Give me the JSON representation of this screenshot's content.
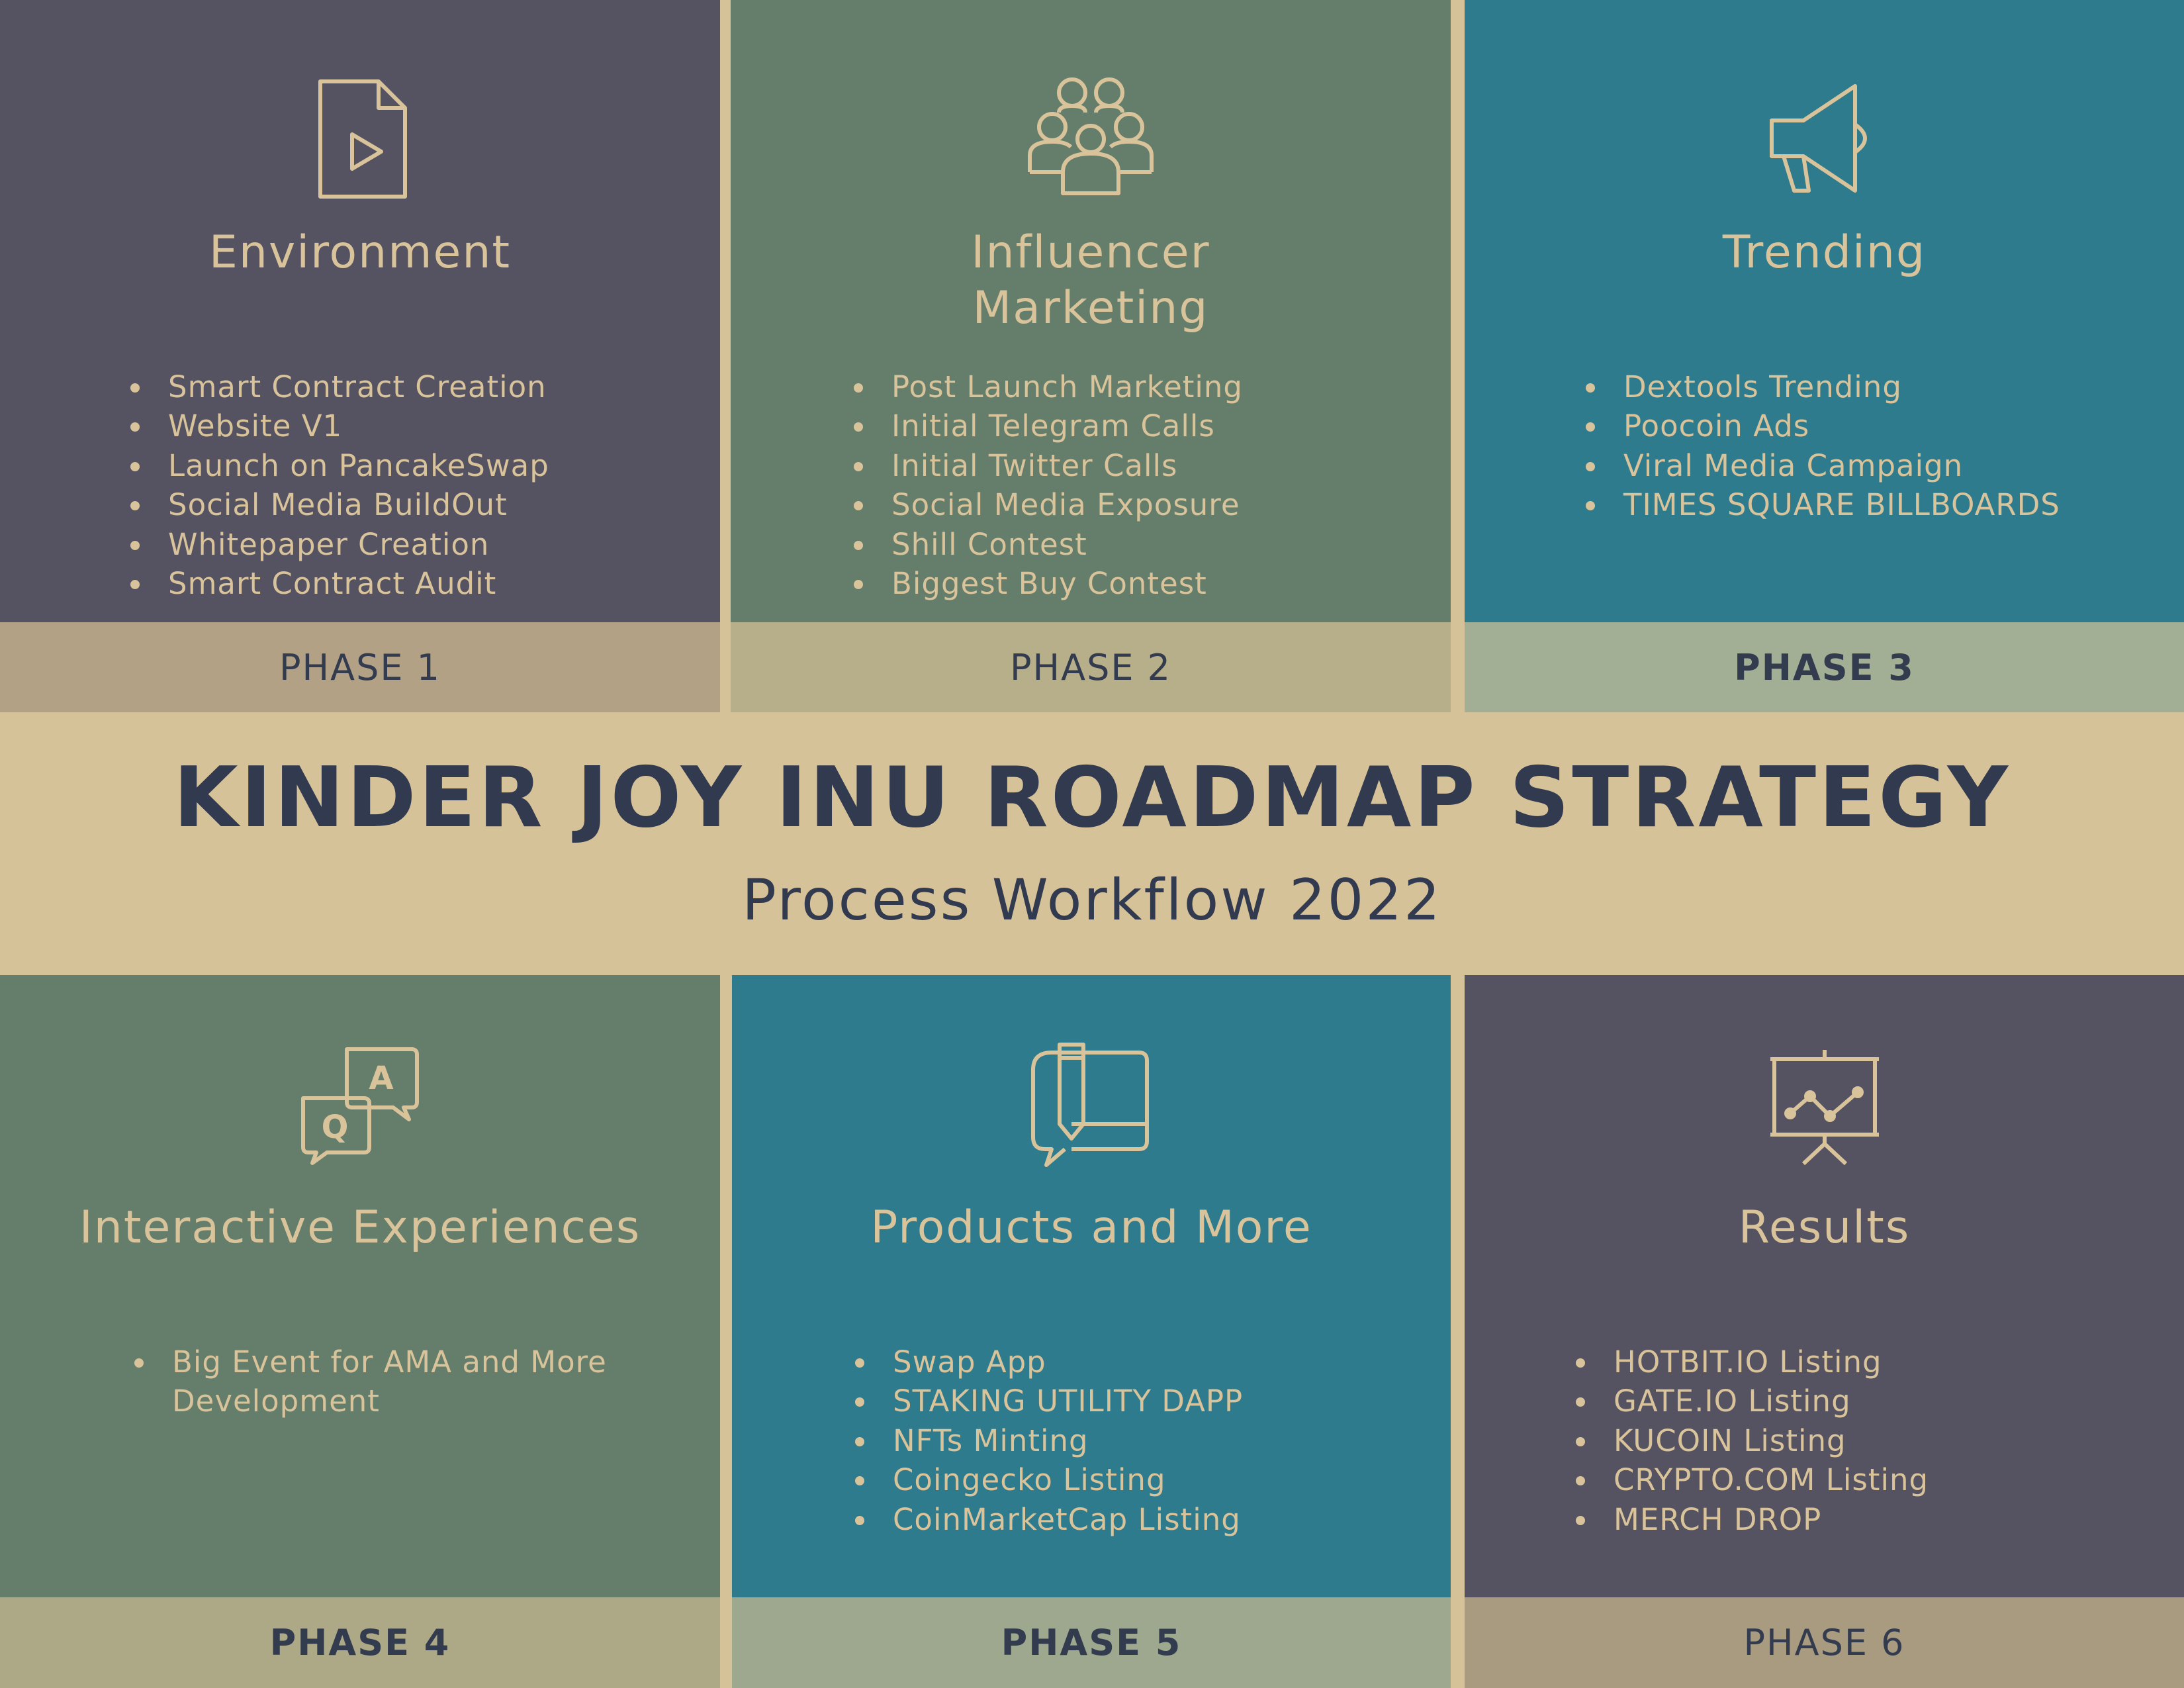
{
  "banner": {
    "title": "KINDER JOY INU ROADMAP STRATEGY",
    "subtitle": "Process Workflow 2022"
  },
  "phases": [
    {
      "title": "Environment",
      "icon": "document-play-icon",
      "items": [
        "Smart Contract Creation",
        "Website V1",
        "Launch  on PancakeSwap",
        "Social Media BuildOut",
        "Whitepaper Creation",
        "Smart Contract Audit"
      ],
      "label": "PHASE 1",
      "panel_color": "#555361",
      "bar_color": "#B3A185"
    },
    {
      "title": "Influencer\nMarketing",
      "icon": "people-group-icon",
      "items": [
        "Post Launch Marketing",
        "Initial Telegram Calls",
        "Initial Twitter Calls",
        "Social Media Exposure",
        "Shill Contest",
        "Biggest Buy Contest"
      ],
      "label": "PHASE 2",
      "panel_color": "#647E6B",
      "bar_color": "#B6AF8A"
    },
    {
      "title": "Trending",
      "icon": "megaphone-icon",
      "items": [
        "Dextools Trending",
        "Poocoin Ads",
        "Viral Media Campaign",
        "TIMES SQUARE BILLBOARDS"
      ],
      "label": "PHASE 3",
      "panel_color": "#2E7B8E",
      "bar_color": "#A3AF95"
    },
    {
      "title": "Interactive Experiences",
      "icon": "qa-chat-icon",
      "items": [
        "Big Event for AMA and More",
        "Development"
      ],
      "label": "PHASE 4",
      "panel_color": "#647E6B",
      "bar_color": "#ADA886"
    },
    {
      "title": "Products and More",
      "icon": "chat-book-icon",
      "items": [
        "Swap App",
        "STAKING UTILITY DAPP",
        "NFTs Minting",
        "Coingecko Listing",
        "CoinMarketCap Listing"
      ],
      "label": "PHASE 5",
      "panel_color": "#2E7B8E",
      "bar_color": "#9EA88F"
    },
    {
      "title": "Results",
      "icon": "presentation-chart-icon",
      "items": [
        "HOTBIT.IO Listing",
        "GATE.IO Listing",
        "KUCOIN Listing",
        "CRYPTO.COM Listing",
        "MERCH DROP"
      ],
      "label": "PHASE 6",
      "panel_color": "#555361",
      "bar_color": "#A99B80"
    }
  ]
}
